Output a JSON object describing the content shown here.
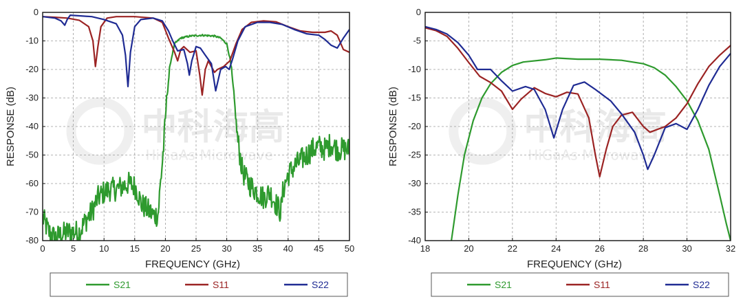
{
  "watermark": {
    "brand_cn": "中科海高",
    "brand_en": "HiGaAs Microwave"
  },
  "colors": {
    "S21": "#2e9a2e",
    "S11": "#9b2323",
    "S22": "#1f2b93",
    "grid": "#9a9a9a",
    "frame": "#111111"
  },
  "legend": [
    {
      "name": "S21",
      "color": "#2e9a2e"
    },
    {
      "name": "S11",
      "color": "#9b2323"
    },
    {
      "name": "S22",
      "color": "#1f2b93"
    }
  ],
  "chart_data": [
    {
      "type": "line",
      "xlabel": "FREQUENCY (GHz)",
      "ylabel": "RESPONSE (dB)",
      "xlim": [
        0,
        50
      ],
      "ylim": [
        -80,
        0
      ],
      "xticks": [
        0,
        5,
        10,
        15,
        20,
        25,
        30,
        35,
        40,
        45,
        50
      ],
      "yticks": [
        0,
        -10,
        -20,
        -30,
        -40,
        -50,
        -60,
        -70,
        -80
      ],
      "grid": true,
      "legend_position": "bottom",
      "series": [
        {
          "name": "S21",
          "color": "#2e9a2e",
          "noisy": true,
          "points": [
            [
              0,
              -72
            ],
            [
              1,
              -77
            ],
            [
              2,
              -79
            ],
            [
              4,
              -77
            ],
            [
              6,
              -77
            ],
            [
              7,
              -73
            ],
            [
              8,
              -70
            ],
            [
              9,
              -65
            ],
            [
              10,
              -63
            ],
            [
              11,
              -62
            ],
            [
              12,
              -62
            ],
            [
              13,
              -61
            ],
            [
              14,
              -60
            ],
            [
              15,
              -61
            ],
            [
              15.5,
              -63
            ],
            [
              16,
              -67
            ],
            [
              17,
              -69
            ],
            [
              18,
              -71
            ],
            [
              18.8,
              -71
            ],
            [
              19.2,
              -60
            ],
            [
              19.8,
              -45
            ],
            [
              20.2,
              -30
            ],
            [
              20.8,
              -18
            ],
            [
              21.5,
              -11
            ],
            [
              22.5,
              -9
            ],
            [
              24,
              -8.3
            ],
            [
              26,
              -8
            ],
            [
              28,
              -8.3
            ],
            [
              29,
              -9
            ],
            [
              30,
              -11
            ],
            [
              30.6,
              -17
            ],
            [
              31.2,
              -30
            ],
            [
              31.8,
              -45
            ],
            [
              32.5,
              -55
            ],
            [
              33,
              -58
            ],
            [
              34,
              -61
            ],
            [
              35,
              -63
            ],
            [
              36,
              -65
            ],
            [
              37,
              -63
            ],
            [
              38,
              -67
            ],
            [
              38.8,
              -70
            ],
            [
              39.2,
              -62
            ],
            [
              40,
              -57
            ],
            [
              41,
              -54
            ],
            [
              42,
              -52
            ],
            [
              43,
              -50
            ],
            [
              44,
              -48
            ],
            [
              45,
              -47
            ],
            [
              46,
              -48
            ],
            [
              47,
              -46
            ],
            [
              48,
              -48
            ],
            [
              49,
              -48
            ],
            [
              50,
              -48
            ]
          ]
        },
        {
          "name": "S11",
          "color": "#9b2323",
          "noisy": false,
          "points": [
            [
              0,
              -1.5
            ],
            [
              2,
              -1.7
            ],
            [
              4,
              -2
            ],
            [
              6,
              -2.8
            ],
            [
              7.5,
              -5
            ],
            [
              8.2,
              -10
            ],
            [
              8.6,
              -19
            ],
            [
              9,
              -12
            ],
            [
              9.5,
              -5
            ],
            [
              10.5,
              -2
            ],
            [
              12,
              -1.5
            ],
            [
              15,
              -1.5
            ],
            [
              18,
              -2
            ],
            [
              19.5,
              -3.5
            ],
            [
              20.5,
              -9
            ],
            [
              21.5,
              -14
            ],
            [
              22,
              -17
            ],
            [
              22.5,
              -13
            ],
            [
              23,
              -12
            ],
            [
              24,
              -14
            ],
            [
              25,
              -13.5
            ],
            [
              25.6,
              -22
            ],
            [
              26,
              -29
            ],
            [
              26.5,
              -20
            ],
            [
              27,
              -17
            ],
            [
              28,
              -21
            ],
            [
              28.5,
              -20
            ],
            [
              29.5,
              -19
            ],
            [
              30.5,
              -17
            ],
            [
              31.5,
              -11
            ],
            [
              32.5,
              -6
            ],
            [
              34,
              -3.5
            ],
            [
              36,
              -3
            ],
            [
              38,
              -3.3
            ],
            [
              40,
              -5
            ],
            [
              42,
              -6.5
            ],
            [
              44,
              -7
            ],
            [
              46,
              -7
            ],
            [
              47,
              -6.5
            ],
            [
              48,
              -8
            ],
            [
              49,
              -13
            ],
            [
              50,
              -14
            ]
          ]
        },
        {
          "name": "S22",
          "color": "#1f2b93",
          "noisy": false,
          "points": [
            [
              0,
              -1.5
            ],
            [
              2,
              -2
            ],
            [
              3,
              -3
            ],
            [
              3.6,
              -4.5
            ],
            [
              4,
              -2.5
            ],
            [
              4.5,
              -1
            ],
            [
              6,
              -1.2
            ],
            [
              8,
              -1.5
            ],
            [
              10,
              -2.5
            ],
            [
              12,
              -4
            ],
            [
              13,
              -8
            ],
            [
              13.5,
              -15
            ],
            [
              13.9,
              -26
            ],
            [
              14.3,
              -14
            ],
            [
              15,
              -5
            ],
            [
              16,
              -2.5
            ],
            [
              18,
              -2
            ],
            [
              19.5,
              -3
            ],
            [
              20.5,
              -6.5
            ],
            [
              21.2,
              -10
            ],
            [
              22,
              -13.5
            ],
            [
              23,
              -13
            ],
            [
              23.6,
              -18
            ],
            [
              23.9,
              -22
            ],
            [
              24.3,
              -17
            ],
            [
              25,
              -12
            ],
            [
              25.7,
              -12.5
            ],
            [
              26.5,
              -15
            ],
            [
              27.5,
              -18
            ],
            [
              28.2,
              -27.5
            ],
            [
              29,
              -20
            ],
            [
              29.8,
              -19
            ],
            [
              30.4,
              -20
            ],
            [
              31,
              -16
            ],
            [
              31.8,
              -10
            ],
            [
              33,
              -5
            ],
            [
              35,
              -3.5
            ],
            [
              37,
              -3.5
            ],
            [
              39,
              -4.2
            ],
            [
              41,
              -6
            ],
            [
              43,
              -7.5
            ],
            [
              45,
              -8
            ],
            [
              46,
              -9.5
            ],
            [
              47,
              -11.5
            ],
            [
              48,
              -12.5
            ],
            [
              49,
              -9
            ],
            [
              50,
              -6
            ]
          ]
        }
      ]
    },
    {
      "type": "line",
      "xlabel": "FREQUENCY (GHz)",
      "ylabel": "RESPONSE (dB)",
      "xlim": [
        18,
        32
      ],
      "ylim": [
        -40,
        0
      ],
      "xticks": [
        18,
        20,
        22,
        24,
        26,
        28,
        30,
        32
      ],
      "yticks": [
        0,
        -5,
        -10,
        -15,
        -20,
        -25,
        -30,
        -35,
        -40
      ],
      "grid": true,
      "legend_position": "bottom",
      "series": [
        {
          "name": "S21",
          "color": "#2e9a2e",
          "noisy": false,
          "points": [
            [
              19.2,
              -40
            ],
            [
              19.5,
              -32
            ],
            [
              19.8,
              -25
            ],
            [
              20.2,
              -19
            ],
            [
              20.6,
              -15
            ],
            [
              21,
              -12.5
            ],
            [
              21.5,
              -10.5
            ],
            [
              22,
              -9.3
            ],
            [
              22.5,
              -8.7
            ],
            [
              23.5,
              -8.3
            ],
            [
              24,
              -8
            ],
            [
              25,
              -8.2
            ],
            [
              26,
              -8.2
            ],
            [
              27,
              -8.4
            ],
            [
              28,
              -9
            ],
            [
              28.5,
              -9.7
            ],
            [
              29,
              -11
            ],
            [
              29.5,
              -13
            ],
            [
              30,
              -15.5
            ],
            [
              30.5,
              -19
            ],
            [
              31,
              -24
            ],
            [
              31.5,
              -32
            ],
            [
              31.8,
              -37
            ],
            [
              32,
              -40
            ]
          ]
        },
        {
          "name": "S11",
          "color": "#9b2323",
          "noisy": false,
          "points": [
            [
              18,
              -2.7
            ],
            [
              18.5,
              -3.2
            ],
            [
              19,
              -4.2
            ],
            [
              19.5,
              -6.3
            ],
            [
              20,
              -8.8
            ],
            [
              20.5,
              -11.2
            ],
            [
              21,
              -12.3
            ],
            [
              21.5,
              -13.8
            ],
            [
              22,
              -17
            ],
            [
              22.4,
              -15.2
            ],
            [
              23,
              -13.2
            ],
            [
              23.5,
              -14.2
            ],
            [
              24,
              -14.8
            ],
            [
              24.5,
              -14
            ],
            [
              25,
              -14.3
            ],
            [
              25.5,
              -18.5
            ],
            [
              25.8,
              -25
            ],
            [
              26,
              -28.8
            ],
            [
              26.3,
              -24
            ],
            [
              26.6,
              -20
            ],
            [
              27,
              -18
            ],
            [
              27.5,
              -17.5
            ],
            [
              28,
              -20
            ],
            [
              28.3,
              -21
            ],
            [
              29,
              -20
            ],
            [
              29.5,
              -18.5
            ],
            [
              30,
              -16
            ],
            [
              30.5,
              -12.5
            ],
            [
              31,
              -9.5
            ],
            [
              31.5,
              -7.5
            ],
            [
              32,
              -5.8
            ]
          ]
        },
        {
          "name": "S22",
          "color": "#1f2b93",
          "noisy": false,
          "points": [
            [
              18,
              -2.5
            ],
            [
              18.5,
              -3
            ],
            [
              19,
              -3.8
            ],
            [
              19.5,
              -5.3
            ],
            [
              20,
              -7.5
            ],
            [
              20.4,
              -10
            ],
            [
              21,
              -10
            ],
            [
              21.5,
              -12
            ],
            [
              22,
              -13.8
            ],
            [
              22.6,
              -13
            ],
            [
              23,
              -13.5
            ],
            [
              23.5,
              -17
            ],
            [
              23.9,
              -22
            ],
            [
              24.3,
              -17
            ],
            [
              24.8,
              -12.8
            ],
            [
              25.3,
              -12.2
            ],
            [
              25.8,
              -13.5
            ],
            [
              26.5,
              -15.5
            ],
            [
              27,
              -17.8
            ],
            [
              27.6,
              -21
            ],
            [
              28,
              -25
            ],
            [
              28.2,
              -27.5
            ],
            [
              28.5,
              -25
            ],
            [
              29,
              -20.2
            ],
            [
              29.5,
              -19.5
            ],
            [
              30,
              -20.5
            ],
            [
              30.5,
              -17
            ],
            [
              31,
              -12.8
            ],
            [
              31.5,
              -9.5
            ],
            [
              32,
              -7.2
            ]
          ]
        }
      ]
    }
  ]
}
